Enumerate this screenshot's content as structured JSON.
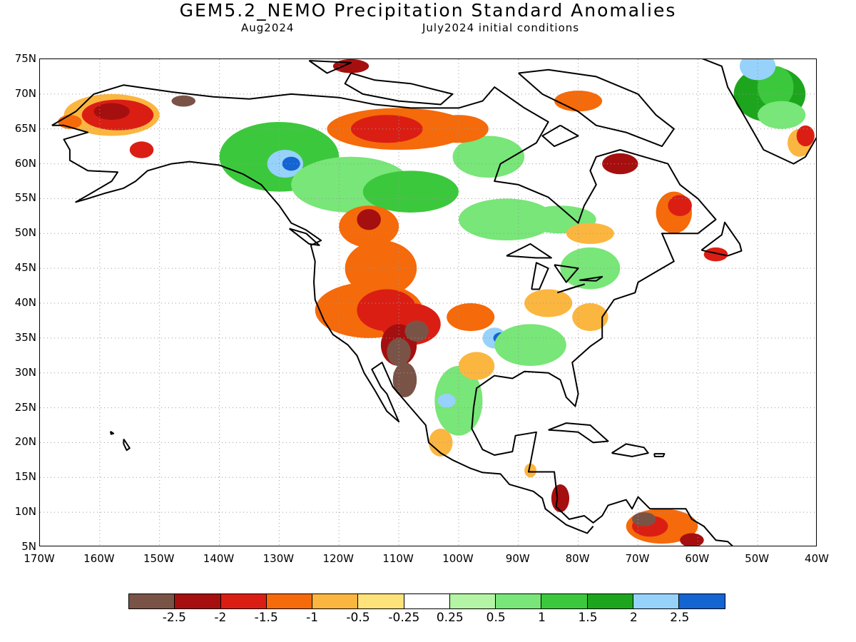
{
  "title": "GEM5.2_NEMO Precipitation Standard Anomalies",
  "subtitle_left": "Aug2024",
  "subtitle_right": "July2024 initial conditions",
  "lat_labels": [
    "75N",
    "70N",
    "65N",
    "60N",
    "55N",
    "50N",
    "45N",
    "40N",
    "35N",
    "30N",
    "25N",
    "20N",
    "15N",
    "10N",
    "5N"
  ],
  "lon_labels": [
    "170W",
    "160W",
    "150W",
    "140W",
    "130W",
    "120W",
    "110W",
    "100W",
    "90W",
    "80W",
    "70W",
    "60W",
    "50W",
    "40W"
  ],
  "legend": {
    "colors": [
      "#7a5347",
      "#a50f0f",
      "#db1e14",
      "#f56a0a",
      "#fbb640",
      "#fee27a",
      "#ffffff",
      "#b4f5a5",
      "#78e678",
      "#3cc83c",
      "#1ea51e",
      "#96d2fa",
      "#1464d2"
    ],
    "labels": [
      "-2.5",
      "-2",
      "-1.5",
      "-1",
      "-0.5",
      "-0.25",
      "0.25",
      "0.5",
      "1",
      "1.5",
      "2",
      "2.5"
    ]
  }
}
